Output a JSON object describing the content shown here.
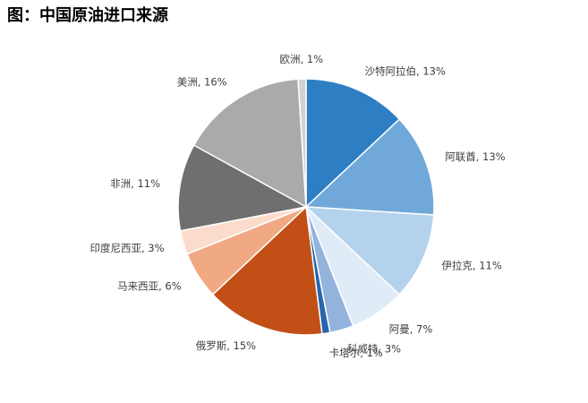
{
  "chart_data": {
    "type": "pie",
    "title": "图：中国原油进口来源",
    "categories": [
      "沙特阿拉伯",
      "阿联酋",
      "伊拉克",
      "阿曼",
      "科威特",
      "卡塔尔",
      "俄罗斯",
      "马来西亚",
      "印度尼西亚",
      "非洲",
      "美洲",
      "欧洲"
    ],
    "values": [
      13,
      13,
      11,
      7,
      3,
      1,
      15,
      6,
      3,
      11,
      16,
      1
    ],
    "value_labels": [
      "13%",
      "13%",
      "11%",
      "7%",
      "3%",
      "1%",
      "15%",
      "6%",
      "3%",
      "11%",
      "16%",
      "1%"
    ],
    "label_separator": ", ",
    "colors": [
      "#2e7ec3",
      "#70a9d9",
      "#b5d2ec",
      "#dfebf7",
      "#93b3dd",
      "#2566ad",
      "#c24f16",
      "#f0a983",
      "#fbdccc",
      "#6f6f6f",
      "#aaaaaa",
      "#d2d2d2"
    ]
  }
}
